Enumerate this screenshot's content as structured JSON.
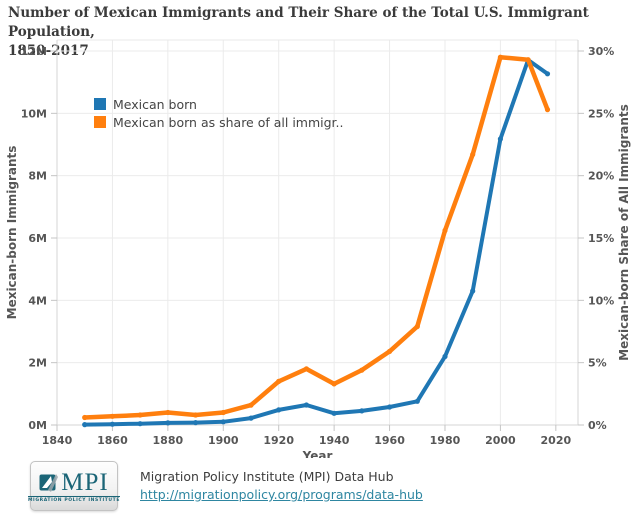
{
  "title": {
    "line1": "Number of Mexican Immigrants and Their Share of the Total U.S. Immigrant Population,",
    "line2": "1850-2017"
  },
  "legend": {
    "items": [
      {
        "label": "Mexican born",
        "color": "#1F77B4"
      },
      {
        "label": "Mexican born as share of all immigr..",
        "color": "#FF7F0E"
      }
    ]
  },
  "chart_data": {
    "type": "line",
    "title": "Number of Mexican Immigrants and Their Share of the Total U.S. Immigrant Population, 1850-2017",
    "x": [
      1850,
      1860,
      1870,
      1880,
      1890,
      1900,
      1910,
      1920,
      1930,
      1940,
      1950,
      1960,
      1970,
      1980,
      1990,
      2000,
      2010,
      2017
    ],
    "series": [
      {
        "name": "Mexican born",
        "yaxis": "left",
        "unit": "millions",
        "color": "#1F77B4",
        "values": [
          0.013,
          0.027,
          0.042,
          0.068,
          0.078,
          0.103,
          0.222,
          0.486,
          0.641,
          0.377,
          0.454,
          0.576,
          0.76,
          2.199,
          4.298,
          9.177,
          11.711,
          11.27
        ]
      },
      {
        "name": "Mexican born as share of all immigrants",
        "yaxis": "right",
        "unit": "percent",
        "color": "#FF7F0E",
        "values": [
          0.6,
          0.7,
          0.8,
          1.0,
          0.8,
          1.0,
          1.6,
          3.5,
          4.5,
          3.3,
          4.4,
          5.9,
          7.9,
          15.6,
          21.7,
          29.5,
          29.3,
          25.3
        ]
      }
    ],
    "xlabel": "Year",
    "ylabel_left": "Mexican-born Immigrants",
    "ylabel_right": "Mexican-born Share of All Immigrants",
    "xlim": [
      1840,
      2028
    ],
    "ylim_left": [
      0,
      12
    ],
    "ylim_right": [
      0,
      30
    ],
    "x_ticks": [
      1840,
      1860,
      1880,
      1900,
      1920,
      1940,
      1960,
      1980,
      2000,
      2020
    ],
    "y_ticks_left_values": [
      0,
      2,
      4,
      6,
      8,
      10,
      12
    ],
    "y_ticks_left_labels": [
      "0M",
      "2M",
      "4M",
      "6M",
      "8M",
      "10M",
      "12M"
    ],
    "y_ticks_right_values": [
      0,
      5,
      10,
      15,
      20,
      25,
      30
    ],
    "y_ticks_right_labels": [
      "0%",
      "5%",
      "10%",
      "15%",
      "20%",
      "25%",
      "30%"
    ],
    "grid": true,
    "legend_position": "inside-top-left",
    "marker": "circle"
  },
  "footer": {
    "source_label": "Migration Policy Institute (MPI) Data Hub",
    "source_url": "http://migrationpolicy.org/programs/data-hub",
    "logo": {
      "acronym": "MPI",
      "subtitle": "MIGRATION POLICY INSTITUTE"
    }
  },
  "colors": {
    "series_blue": "#1F77B4",
    "series_orange": "#FF7F0E",
    "grid": "#ebebeb",
    "axis_line": "#d4d4d4",
    "tick_mark": "#c4c4c4",
    "tick_text": "#565656",
    "title_text": "#3b3b3b",
    "link": "#2e86a1",
    "mpi_teal": "#1b6577"
  }
}
